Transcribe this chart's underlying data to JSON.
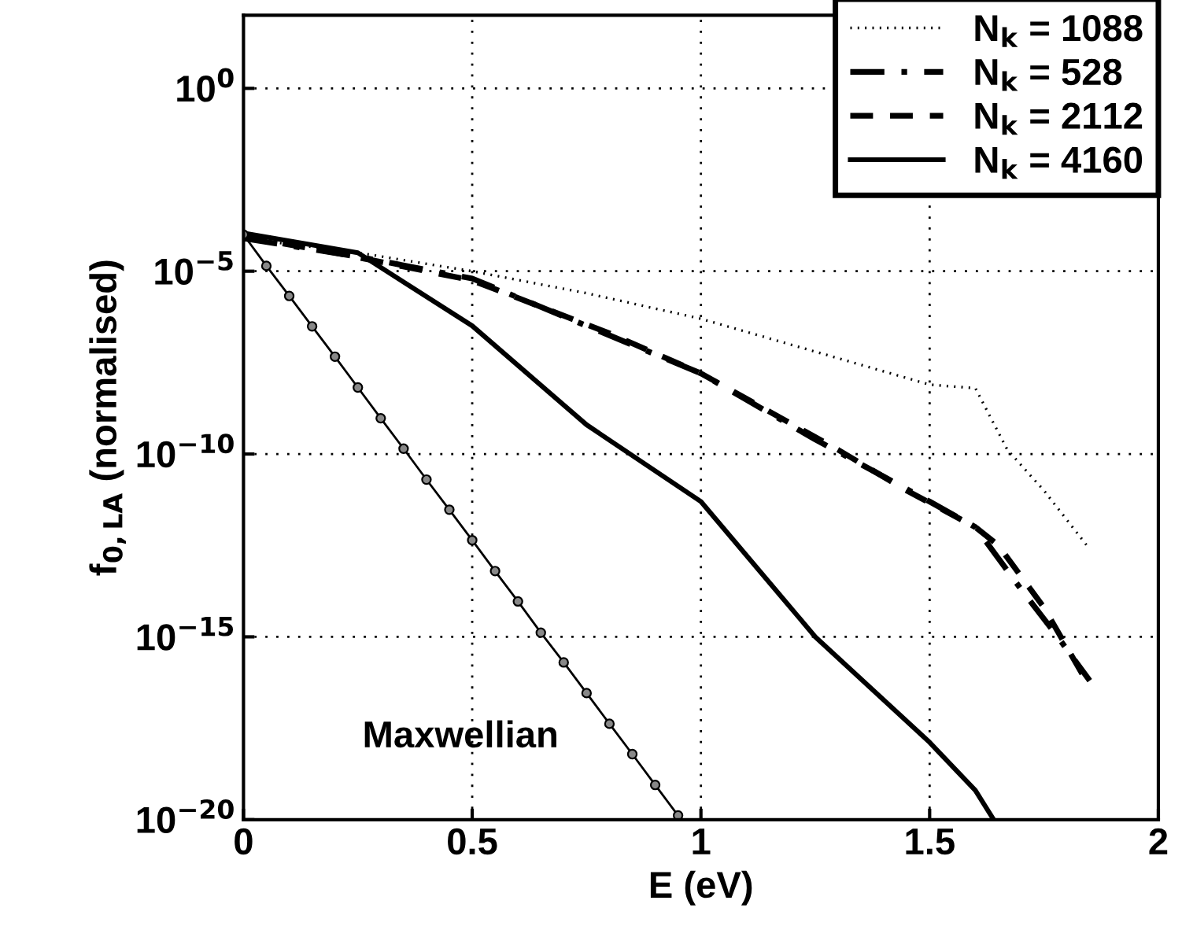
{
  "chart_data": {
    "type": "line",
    "xlabel": "E (eV)",
    "ylabel": "f$_{0,LA}$ (normalised)",
    "log": "y",
    "xlim": [
      0,
      2
    ],
    "ylim": [
      1e-20,
      100
    ],
    "xticks": [
      0,
      0.5,
      1,
      1.5,
      2
    ],
    "yticks": [
      {
        "value": 1,
        "label": "10$^{0}$"
      },
      {
        "value": 1e-05,
        "label": "10$^{−5}$"
      },
      {
        "value": 1e-10,
        "label": "10$^{−10}$"
      },
      {
        "value": 1e-15,
        "label": "10$^{−15}$"
      },
      {
        "value": 1e-20,
        "label": "10$^{−20}$"
      }
    ],
    "grid": true,
    "legend": "top right",
    "annotations": [
      "Maxwellian"
    ],
    "series": [
      {
        "name": "N$_{k}$ = 1088",
        "color": "#000000",
        "line_style": "dotted",
        "x": [
          0,
          0.25,
          0.5,
          0.75,
          1,
          1.25,
          1.5,
          1.6,
          1.67,
          1.75,
          1.85
        ],
        "values": [
          7.9e-05,
          3.2e-05,
          1e-05,
          2.5e-06,
          5e-07,
          6.3e-08,
          7.9e-09,
          6.3e-09,
          1.3e-10,
          1e-11,
          2.5e-13
        ]
      },
      {
        "name": "N$_{k}$ = 528",
        "color": "#000000",
        "line_style": "dashdot",
        "x": [
          0,
          0.25,
          0.5,
          0.75,
          1,
          1.25,
          1.5,
          1.6,
          1.7,
          1.78,
          1.85
        ],
        "values": [
          7.9e-05,
          2.5e-05,
          6.3e-06,
          3.2e-07,
          1.6e-08,
          2.5e-10,
          5e-12,
          1e-12,
          2e-14,
          1e-15,
          6.3e-17
        ]
      },
      {
        "name": "N$_{k}$ = 2112",
        "color": "#000000",
        "line_style": "dashed",
        "x": [
          0,
          0.2,
          0.5,
          0.8,
          1,
          1.3,
          1.45,
          1.6,
          1.65,
          1.75,
          1.84
        ],
        "values": [
          8.9e-05,
          3.2e-05,
          5.6e-06,
          2e-07,
          1.6e-08,
          1.3e-10,
          1e-11,
          1e-12,
          3.2e-13,
          6.3e-15,
          7e-17
        ]
      },
      {
        "name": "N$_{k}$ = 4160",
        "color": "#000000",
        "line_style": "solid",
        "x": [
          0,
          0.25,
          0.5,
          0.75,
          1,
          1.25,
          1.5,
          1.6,
          1.64
        ],
        "values": [
          0.00011,
          3.2e-05,
          3.2e-07,
          6.3e-10,
          5e-12,
          1e-15,
          1.3e-18,
          6.3e-20,
          1e-20
        ]
      },
      {
        "color": "#000000",
        "line_style": "solid",
        "marker": "circle",
        "x": [
          0,
          0.05,
          0.1,
          0.15,
          0.2,
          0.25,
          0.3,
          0.35,
          0.4,
          0.45,
          0.5,
          0.55,
          0.6,
          0.65,
          0.7,
          0.75,
          0.8,
          0.85,
          0.9,
          0.95
        ],
        "values": [
          0.0001,
          1.4e-05,
          2.1e-06,
          3.1e-07,
          4.6e-08,
          6.6e-09,
          9.5e-10,
          1.4e-10,
          2e-11,
          3e-12,
          4.4e-13,
          6.3e-14,
          9.3e-15,
          1.3e-15,
          2e-16,
          2.9e-17,
          4.2e-18,
          6.2e-19,
          8.9e-20,
          1.3e-20
        ]
      }
    ]
  }
}
